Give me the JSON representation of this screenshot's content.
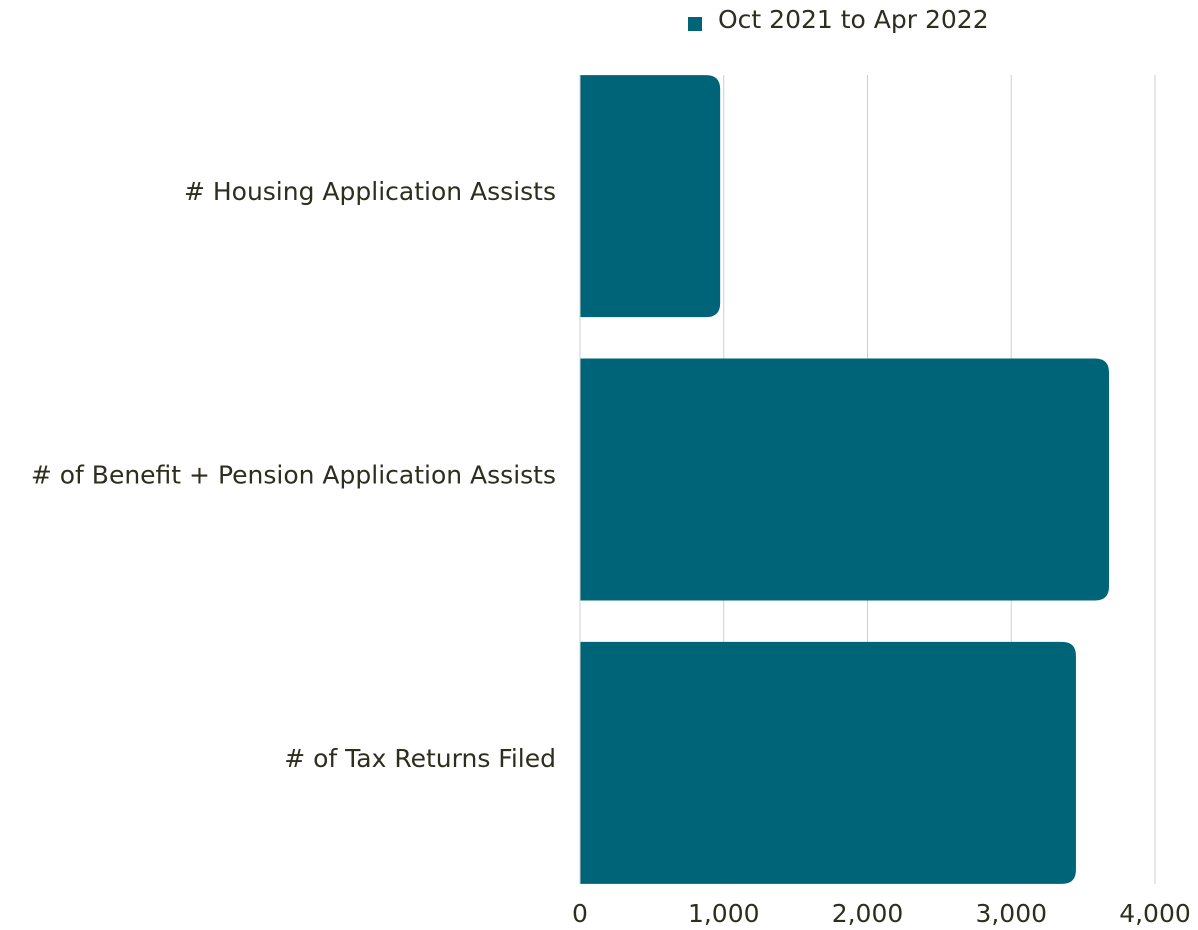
{
  "chart_data": {
    "type": "hbar",
    "categories": [
      "# Housing Application Assists",
      "# of Benefit + Pension Application Assists",
      "# of Tax Returns Filed"
    ],
    "series": [
      {
        "name": "Oct 2021 to Apr 2022",
        "color": "#006479",
        "values": [
          975,
          3680,
          3450
        ]
      }
    ],
    "xlim": [
      0,
      4000
    ],
    "xticks": [
      0,
      {
        "value": 1000,
        "label": "1,000"
      },
      {
        "value": 2000,
        "label": "2,000"
      },
      {
        "value": 3000,
        "label": "3,000"
      },
      {
        "value": 4000,
        "label": "4,000"
      }
    ],
    "grid": true,
    "legend": "top"
  }
}
